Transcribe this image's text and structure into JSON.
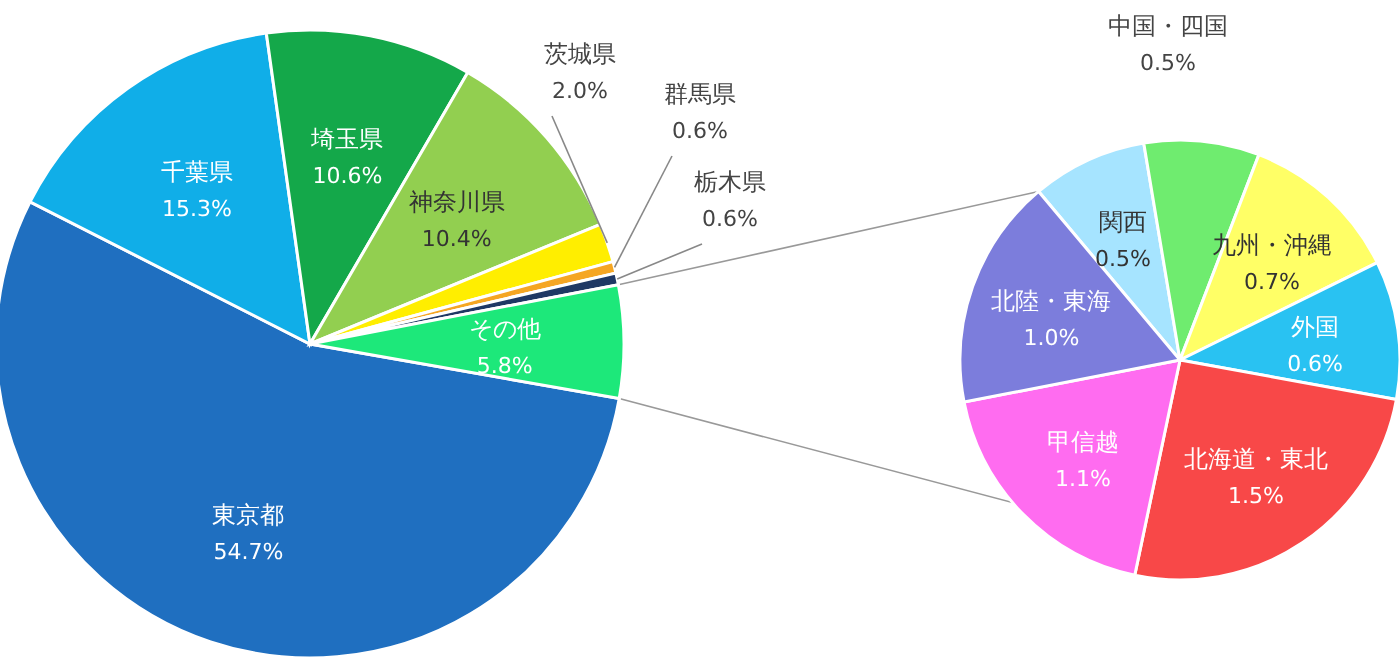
{
  "chart_data": [
    {
      "type": "pie",
      "categories": [
        "東京都",
        "千葉県",
        "埼玉県",
        "神奈川県",
        "茨城県",
        "群馬県",
        "栃木県",
        "その他"
      ],
      "values": [
        54.7,
        15.3,
        10.6,
        10.4,
        2.0,
        0.6,
        0.6,
        5.8
      ],
      "colors": [
        "#1f6fc0",
        "#10aee8",
        "#14a84a",
        "#92cf50",
        "#ffee00",
        "#f5a623",
        "#1f3864",
        "#1de87a"
      ],
      "value_labels": [
        "54.7%",
        "15.3%",
        "10.6%",
        "10.4%",
        "2.0%",
        "0.6%",
        "0.6%",
        "5.8%"
      ]
    },
    {
      "type": "pie",
      "categories": [
        "関西",
        "中国・四国",
        "九州・沖縄",
        "外国",
        "北海道・東北",
        "甲信越",
        "北陸・東海"
      ],
      "values": [
        0.5,
        0.5,
        0.7,
        0.6,
        1.5,
        1.1,
        1.0
      ],
      "colors": [
        "#a6e4ff",
        "#6fec6f",
        "#ffff66",
        "#29c2f2",
        "#f84848",
        "#ff6cf0",
        "#7c7ddc"
      ],
      "value_labels": [
        "0.5%",
        "0.5%",
        "0.7%",
        "0.6%",
        "1.5%",
        "1.1%",
        "1.0%"
      ]
    }
  ]
}
